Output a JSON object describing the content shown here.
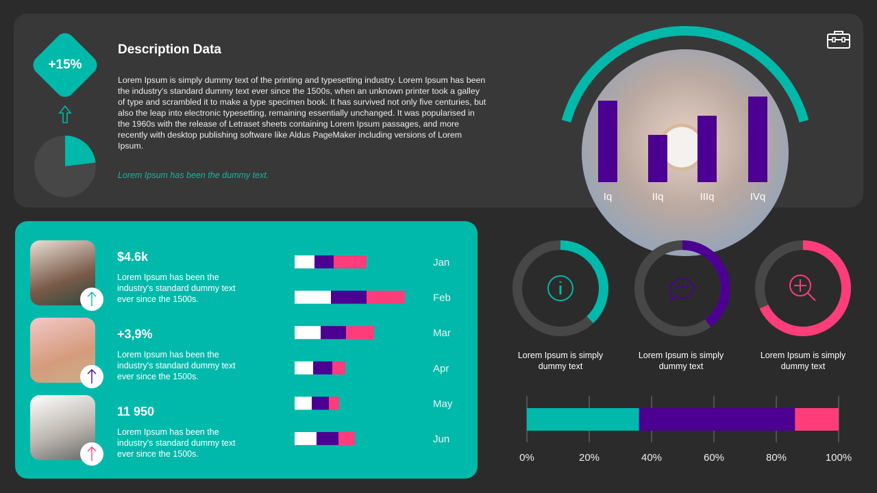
{
  "colors": {
    "teal": "#00b9ab",
    "purple": "#4b0092",
    "pink": "#ff3d7a",
    "gray": "#474747"
  },
  "header": {
    "badge": "+15%",
    "title": "Description Data",
    "body": "Lorem Ipsum is simply dummy text of the printing and typesetting industry. Lorem Ipsum has been the industry's standard dummy text ever since the 1500s, when an unknown printer took a galley of type and scrambled it to make a type specimen book. It has survived not only five centuries, but also the leap into electronic typesetting, remaining essentially unchanged. It was popularised in the 1960s with the release of Letraset sheets containing Lorem Ipsum passages, and more recently with desktop publishing software like Aldus PageMaker including versions of Lorem Ipsum.",
    "note": "Lorem Ipsum has been the dummy text.",
    "icon": "briefcase-icon"
  },
  "people": [
    {
      "value": "$4.6k",
      "text": "Lorem Ipsum has been the industry's standard dummy text ever since the 1500s.",
      "arrow_color": "#00b9ab"
    },
    {
      "value": "+3,9%",
      "text": "Lorem Ipsum has been the industry's standard dummy text ever since the 1500s.",
      "arrow_color": "#4b0092"
    },
    {
      "value": "11 950",
      "text": "Lorem Ipsum has been the industry's standard dummy text ever since the 1500s.",
      "arrow_color": "#ff3d7a"
    }
  ],
  "donut_captions": [
    "Lorem Ipsum is simply dummy text",
    "Lorem Ipsum is simply dummy text",
    "Lorem Ipsum is simply dummy text"
  ],
  "chart_data": [
    {
      "type": "pie",
      "values": [
        0.23,
        0.77
      ],
      "colors": [
        "#00b9ab",
        "#474747"
      ]
    },
    {
      "type": "bar",
      "orientation": "vertical",
      "categories": [
        "Iq",
        "IIq",
        "IIIq",
        "IVq"
      ],
      "values": [
        119,
        69,
        97,
        125
      ],
      "color": "#4b0092"
    },
    {
      "type": "bar",
      "orientation": "horizontal",
      "stacked": true,
      "categories": [
        "Jan",
        "Feb",
        "Mar",
        "Apr",
        "May",
        "Jun"
      ],
      "series": [
        {
          "values": [
            29,
            53,
            38,
            27,
            25,
            32
          ],
          "color": "#ffffff"
        },
        {
          "values": [
            28,
            52,
            37,
            28,
            25,
            32
          ],
          "color": "#4b0092"
        },
        {
          "values": [
            48,
            56,
            41,
            19,
            15,
            24
          ],
          "color": "#ff3d7a"
        }
      ]
    },
    {
      "type": "pie",
      "variant": "donut",
      "items": [
        {
          "value": 0.38,
          "color": "#00b9ab",
          "icon": "info-icon"
        },
        {
          "value": 0.4,
          "color": "#4b0092",
          "icon": "chat-icon"
        },
        {
          "value": 0.68,
          "color": "#ff3d7a",
          "icon": "zoom-in-icon"
        }
      ]
    },
    {
      "type": "bar",
      "orientation": "horizontal",
      "stacked": true,
      "percent": true,
      "series": [
        {
          "values": [
            36
          ],
          "color": "#00b9ab"
        },
        {
          "values": [
            50
          ],
          "color": "#4b0092"
        },
        {
          "values": [
            14
          ],
          "color": "#ff3d7a"
        }
      ],
      "xlim": [
        0,
        100
      ],
      "ticks": [
        "0%",
        "20%",
        "40%",
        "60%",
        "80%",
        "100%"
      ],
      "grid": true
    }
  ]
}
